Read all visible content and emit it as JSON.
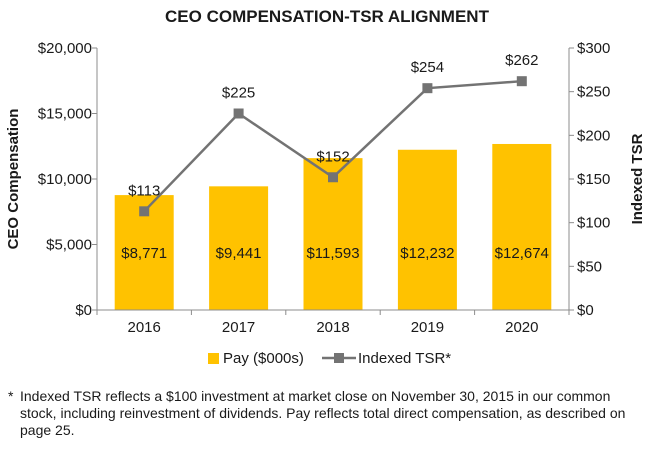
{
  "chart_data": {
    "type": "bar+line",
    "title": "CEO COMPENSATION-TSR ALIGNMENT",
    "categories": [
      "2016",
      "2017",
      "2018",
      "2019",
      "2020"
    ],
    "left_axis": {
      "label": "CEO Compensation",
      "range": [
        0,
        20000
      ],
      "ticks": [
        0,
        5000,
        10000,
        15000,
        20000
      ],
      "tick_labels": [
        "$0",
        "$5,000",
        "$10,000",
        "$15,000",
        "$20,000"
      ]
    },
    "right_axis": {
      "label": "Indexed TSR",
      "range": [
        0,
        300
      ],
      "ticks": [
        0,
        50,
        100,
        150,
        200,
        250,
        300
      ],
      "tick_labels": [
        "$0",
        "$50",
        "$100",
        "$150",
        "$200",
        "$250",
        "$300"
      ]
    },
    "series": [
      {
        "name": "Pay ($000s)",
        "type": "bar",
        "axis": "left",
        "values": [
          8771,
          9441,
          11593,
          12232,
          12674
        ],
        "labels": [
          "$8,771",
          "$9,441",
          "$11,593",
          "$12,232",
          "$12,674"
        ],
        "color": "#FFC200"
      },
      {
        "name": "Indexed TSR",
        "legend_label": "Indexed TSR*",
        "type": "line",
        "axis": "right",
        "values": [
          113,
          225,
          152,
          254,
          262
        ],
        "labels": [
          "$113",
          "$225",
          "$152",
          "$254",
          "$262"
        ],
        "color": "#737373"
      }
    ],
    "legend_position": "bottom",
    "grid": false
  },
  "footnote": {
    "marker": "*",
    "text": "Indexed TSR reflects a $100 investment at market close on November 30, 2015 in our common stock, including reinvestment of dividends. Pay reflects total direct compensation, as described on page 25."
  }
}
